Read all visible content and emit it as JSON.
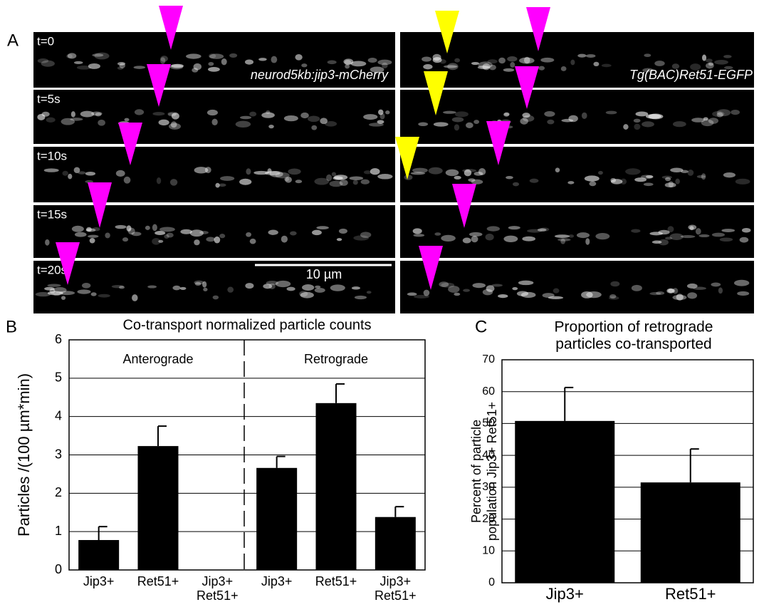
{
  "panel_a": {
    "label": "A",
    "times": [
      "t=0",
      "t=5s",
      "t=10s",
      "t=15s",
      "t=20s"
    ],
    "left_label": "neurod5kb:jip3-mCherry",
    "right_label": "Tg(BAC)Ret51-EGFP",
    "scale_bar": "10 µm"
  },
  "chart_data": [
    {
      "type": "bar",
      "panel_label": "B",
      "title": "Co-transport normalized particle counts",
      "y_label": "Particles /(100 µm*min)",
      "groups": [
        "Anterograde",
        "Retrograde"
      ],
      "categories": [
        [
          "Jip3+"
        ],
        [
          "Ret51+"
        ],
        [
          "Jip3+",
          "Ret51+"
        ],
        [
          "Jip3+"
        ],
        [
          "Ret51+"
        ],
        [
          "Jip3+",
          "Ret51+"
        ]
      ],
      "values": [
        0.78,
        3.23,
        0,
        2.66,
        4.35,
        1.38
      ],
      "errors": [
        0.35,
        0.52,
        null,
        0.3,
        0.5,
        0.27
      ],
      "color": "#000000",
      "ylim": [
        0,
        6
      ],
      "yticks": [
        0,
        1,
        2,
        3,
        4,
        5,
        6
      ],
      "grid": true
    },
    {
      "type": "bar",
      "panel_label": "C",
      "title": [
        "Proportion of retrograde",
        "particles co-transported"
      ],
      "y_label": [
        "Percent of particle",
        "population Jip3+ Ret51+"
      ],
      "categories": [
        [
          "Jip3+"
        ],
        [
          "Ret51+"
        ]
      ],
      "values": [
        50.8,
        31.5
      ],
      "errors": [
        10.5,
        10.5
      ],
      "color": "#000000",
      "ylim": [
        0,
        70
      ],
      "yticks": [
        0,
        10,
        20,
        30,
        40,
        50,
        60,
        70
      ],
      "grid": true
    }
  ]
}
